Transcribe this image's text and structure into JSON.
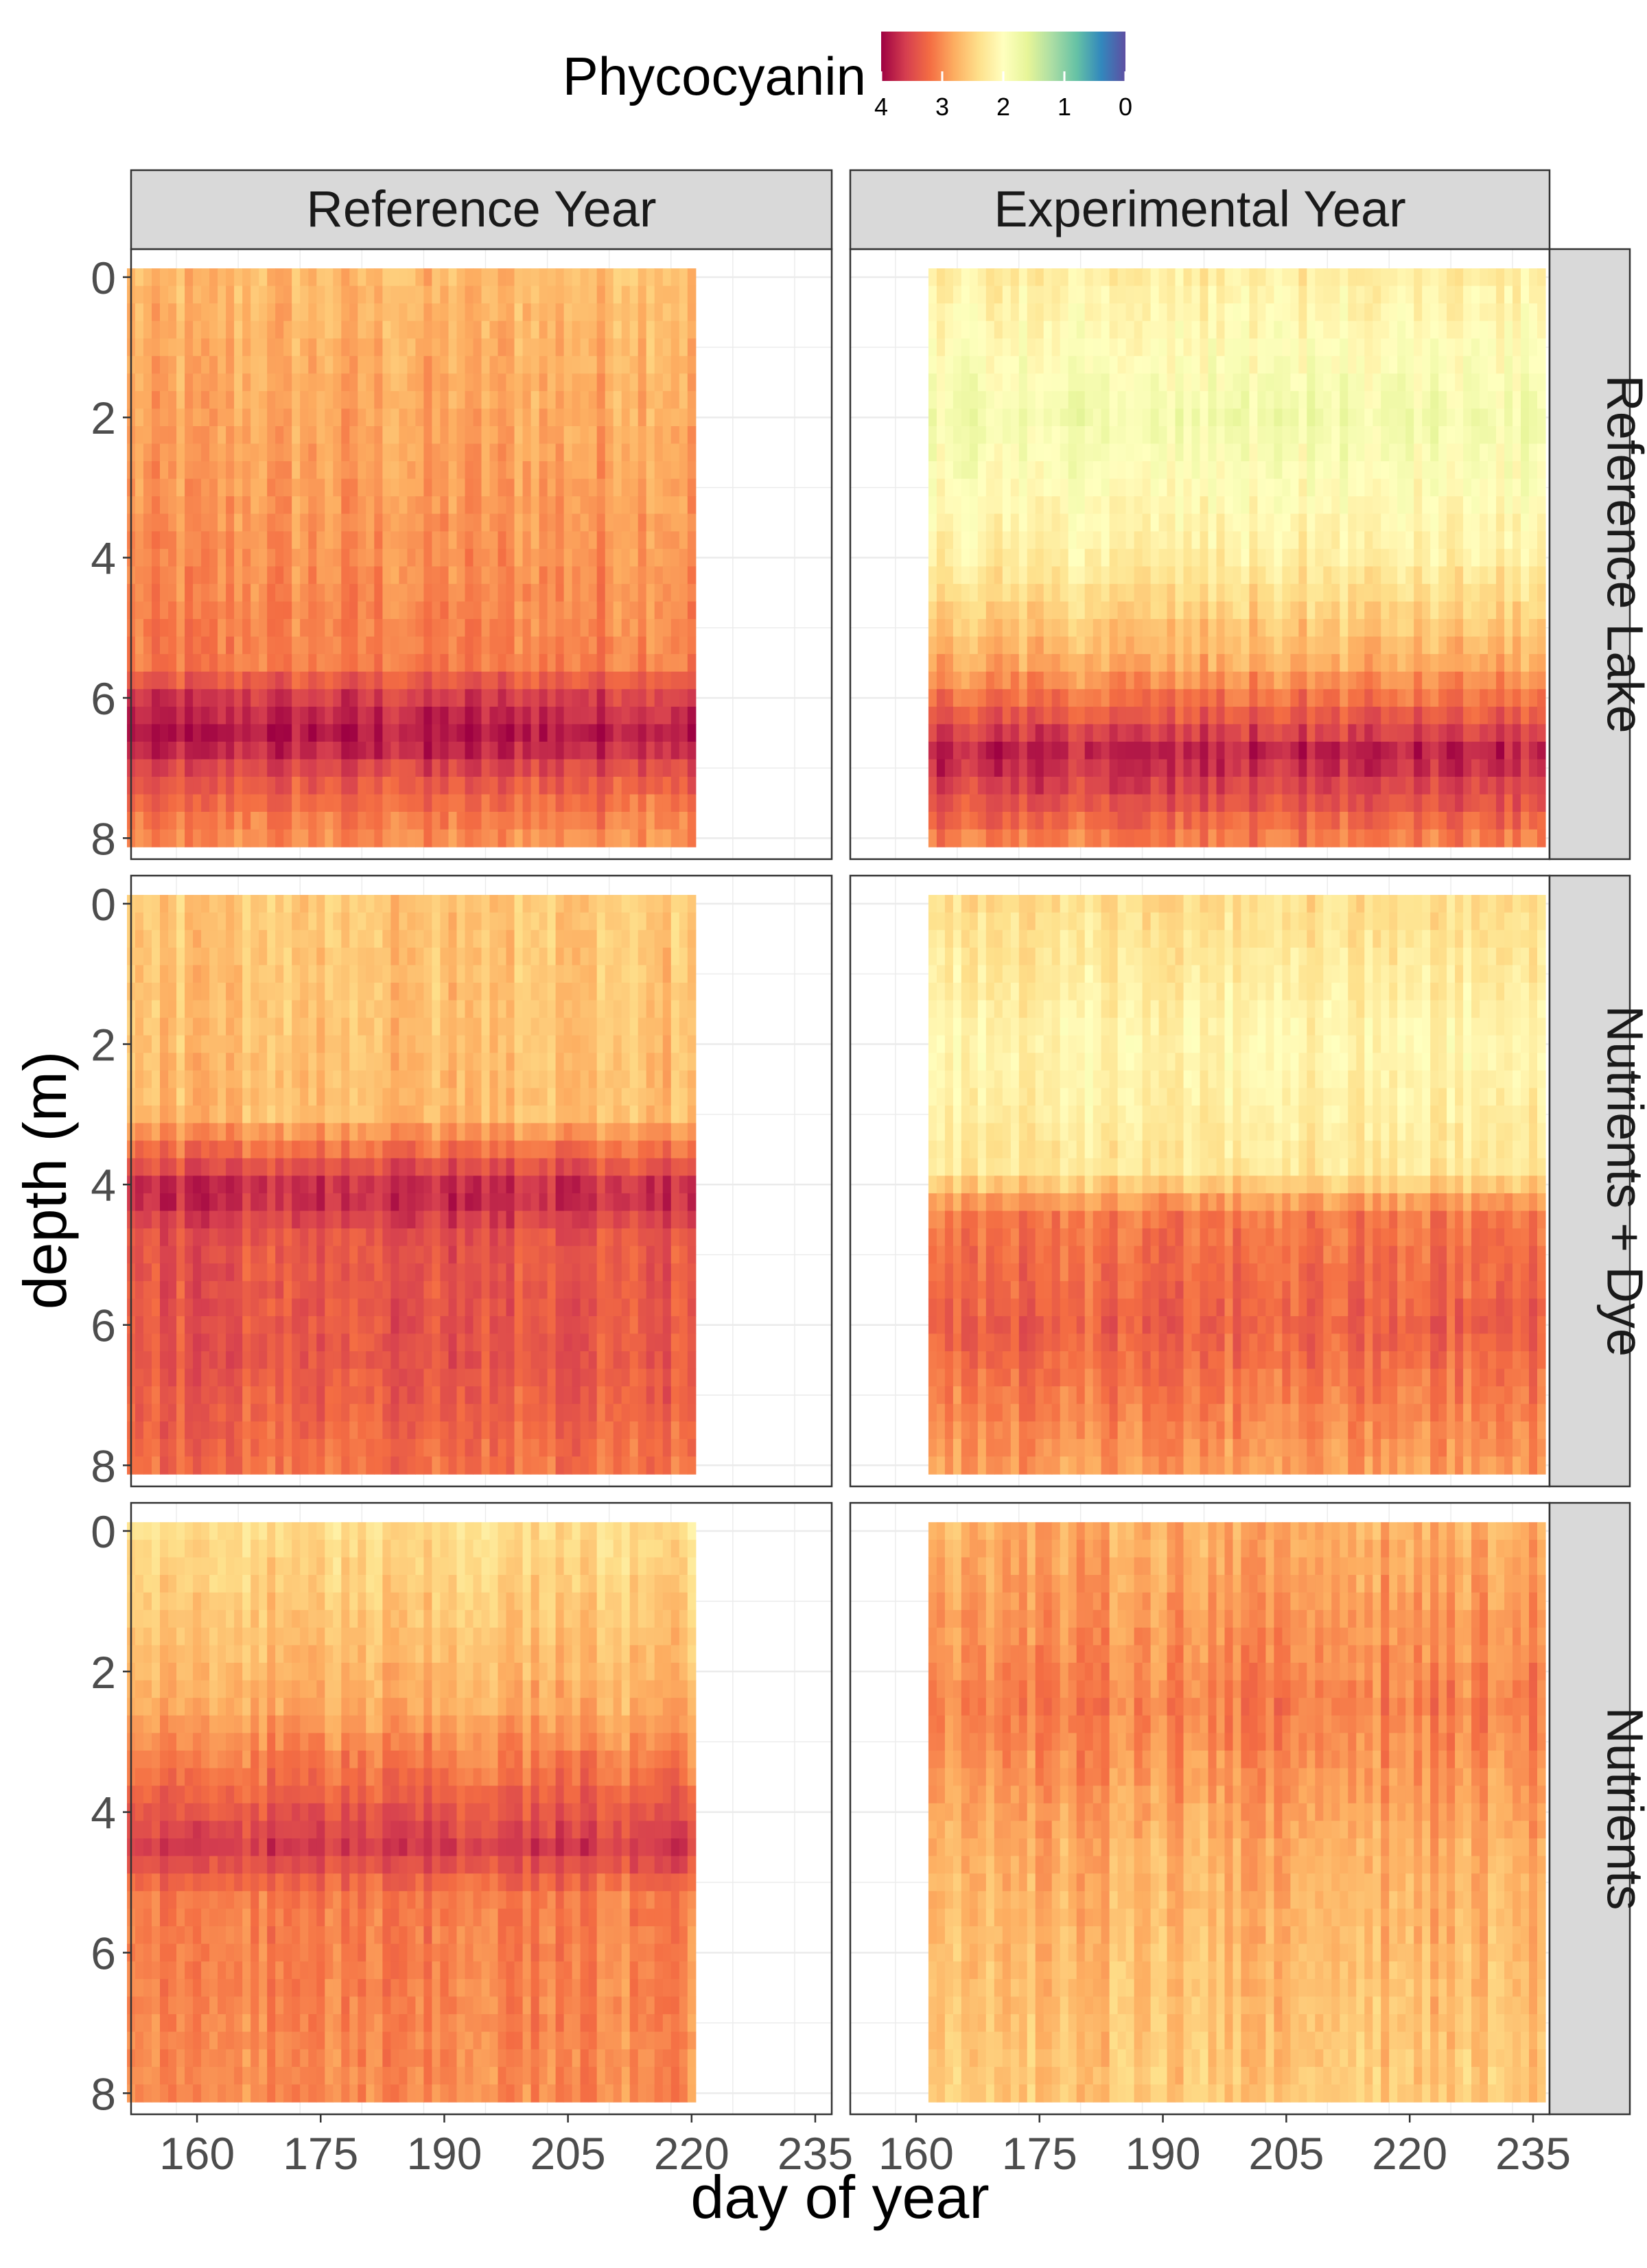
{
  "chart_data": {
    "type": "heatmap",
    "title": "",
    "xlabel": "day of year",
    "ylabel": "depth (m)",
    "legend": {
      "title": "Phycocyanin",
      "position": "top",
      "ticks": [
        4,
        3,
        2,
        1,
        0
      ],
      "range": [
        4,
        0
      ],
      "palette": [
        "#9e0142",
        "#d53e4f",
        "#f46d43",
        "#fdae61",
        "#fee08b",
        "#ffffbf",
        "#e6f598",
        "#abdda4",
        "#66c2a5",
        "#3288bd",
        "#5e4fa2"
      ]
    },
    "columns": [
      "Reference Year",
      "Experimental Year"
    ],
    "rows": [
      "Reference Lake",
      "Nutrients + Dye",
      "Nutrients"
    ],
    "x_ticks": {
      "left": [
        "160",
        "175",
        "190",
        "205",
        "220",
        "235"
      ],
      "right": [
        "160",
        "175",
        "190",
        "205",
        "220",
        "235"
      ]
    },
    "y_ticks": [
      "0",
      "2",
      "4",
      "6",
      "8"
    ],
    "xlim": [
      152,
      237
    ],
    "ylim": [
      8.3,
      -0.4
    ],
    "grid": true,
    "panels": [
      {
        "row": 0,
        "col": 0,
        "day_range": [
          152,
          220
        ],
        "depth_range": [
          0,
          8
        ],
        "layers": [
          {
            "d": 0,
            "v": 2.7
          },
          {
            "d": 3,
            "v": 2.9
          },
          {
            "d": 5.5,
            "v": 3.1
          },
          {
            "d": 6.0,
            "v": 3.6
          },
          {
            "d": 6.6,
            "v": 3.9
          },
          {
            "d": 7.0,
            "v": 3.5
          },
          {
            "d": 7.5,
            "v": 3.2
          },
          {
            "d": 8,
            "v": 3.0
          }
        ]
      },
      {
        "row": 0,
        "col": 1,
        "day_range": [
          162,
          236
        ],
        "depth_range": [
          0,
          8
        ],
        "layers": [
          {
            "d": 0,
            "v": 2.2
          },
          {
            "d": 2,
            "v": 1.8
          },
          {
            "d": 4,
            "v": 2.2
          },
          {
            "d": 5.5,
            "v": 2.8
          },
          {
            "d": 6.2,
            "v": 3.3
          },
          {
            "d": 6.8,
            "v": 3.8
          },
          {
            "d": 7.5,
            "v": 3.4
          },
          {
            "d": 8,
            "v": 3.1
          }
        ]
      },
      {
        "row": 1,
        "col": 0,
        "day_range": [
          152,
          220
        ],
        "depth_range": [
          0,
          8
        ],
        "layers": [
          {
            "d": 0,
            "v": 2.6
          },
          {
            "d": 3,
            "v": 2.7
          },
          {
            "d": 3.6,
            "v": 3.3
          },
          {
            "d": 4.1,
            "v": 3.8
          },
          {
            "d": 4.8,
            "v": 3.4
          },
          {
            "d": 6.5,
            "v": 3.4
          },
          {
            "d": 8,
            "v": 3.2
          }
        ]
      },
      {
        "row": 1,
        "col": 1,
        "day_range": [
          162,
          236
        ],
        "depth_range": [
          0,
          8
        ],
        "layers": [
          {
            "d": 0,
            "v": 2.4
          },
          {
            "d": 2,
            "v": 2.1
          },
          {
            "d": 3.8,
            "v": 2.3
          },
          {
            "d": 4.4,
            "v": 3.1
          },
          {
            "d": 6,
            "v": 3.3
          },
          {
            "d": 8,
            "v": 2.9
          }
        ]
      },
      {
        "row": 2,
        "col": 0,
        "day_range": [
          152,
          220
        ],
        "depth_range": [
          0,
          8
        ],
        "layers": [
          {
            "d": 0,
            "v": 2.4
          },
          {
            "d": 2.5,
            "v": 2.8
          },
          {
            "d": 3.8,
            "v": 3.3
          },
          {
            "d": 4.5,
            "v": 3.6
          },
          {
            "d": 5.2,
            "v": 3.1
          },
          {
            "d": 8,
            "v": 3.0
          }
        ]
      },
      {
        "row": 2,
        "col": 1,
        "day_range": [
          162,
          236
        ],
        "depth_range": [
          0,
          8
        ],
        "layers": [
          {
            "d": 0,
            "v": 2.8
          },
          {
            "d": 2.5,
            "v": 3.1
          },
          {
            "d": 4.5,
            "v": 2.8
          },
          {
            "d": 6,
            "v": 2.7
          },
          {
            "d": 8,
            "v": 2.6
          }
        ]
      }
    ]
  }
}
